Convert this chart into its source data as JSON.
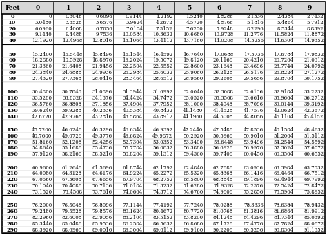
{
  "col_headers": [
    "Feet",
    "0",
    "1",
    "2",
    "3",
    "4",
    "5",
    "6",
    "7",
    "8",
    "9"
  ],
  "row_labels": [
    0,
    10,
    20,
    30,
    40,
    50,
    60,
    70,
    80,
    90,
    100,
    110,
    120,
    130,
    140,
    150,
    160,
    170,
    180,
    190,
    200,
    210,
    220,
    230,
    240,
    250,
    260,
    270,
    280,
    290
  ],
  "data": [
    [
      0,
      0.3048,
      0.6096,
      0.9144,
      1.2192,
      1.524,
      1.8288,
      2.1336,
      2.4384,
      2.7432
    ],
    [
      3.048,
      3.3528,
      3.6576,
      3.9624,
      4.2672,
      4.572,
      4.8768,
      5.1816,
      5.4864,
      5.7912
    ],
    [
      6.096,
      6.4008,
      6.7056,
      7.0104,
      7.3152,
      7.62,
      7.9248,
      8.2296,
      8.5344,
      8.8392
    ],
    [
      9.144,
      9.4488,
      9.7536,
      10.0584,
      10.3632,
      10.668,
      10.9728,
      11.2776,
      11.5824,
      11.8872
    ],
    [
      12.192,
      12.4968,
      12.8016,
      13.1064,
      13.4112,
      13.716,
      14.0208,
      14.3256,
      14.6304,
      14.9352
    ],
    [
      15.24,
      15.5448,
      15.8496,
      16.1544,
      16.4592,
      16.764,
      17.0688,
      17.3736,
      17.6784,
      17.9832
    ],
    [
      18.288,
      18.5928,
      18.8976,
      19.2024,
      19.5072,
      19.812,
      20.1168,
      20.4216,
      20.7264,
      21.0312
    ],
    [
      21.336,
      21.6408,
      21.9456,
      22.2504,
      22.5552,
      22.86,
      23.1648,
      23.4696,
      23.7744,
      24.0792
    ],
    [
      24.384,
      24.6888,
      24.9936,
      25.2984,
      25.6032,
      25.908,
      26.2128,
      26.5176,
      26.8224,
      27.1272
    ],
    [
      27.432,
      27.7368,
      28.0416,
      28.3464,
      28.6512,
      28.956,
      29.2608,
      29.5656,
      29.8704,
      30.1752
    ],
    [
      30.48,
      30.7848,
      31.0896,
      31.3944,
      31.6992,
      32.004,
      32.3088,
      32.6136,
      32.9184,
      33.2232
    ],
    [
      33.528,
      33.8328,
      34.1376,
      34.4424,
      34.7472,
      35.052,
      35.3568,
      35.6616,
      35.9664,
      36.2712
    ],
    [
      36.576,
      36.8808,
      37.1856,
      37.4904,
      37.7952,
      38.1,
      38.4048,
      38.7096,
      39.0144,
      39.3192
    ],
    [
      39.624,
      39.9288,
      40.2336,
      40.5384,
      40.8432,
      41.148,
      41.4528,
      41.7576,
      42.0624,
      42.3672
    ],
    [
      42.672,
      42.9768,
      43.2816,
      43.5864,
      43.8912,
      44.196,
      44.5008,
      44.8056,
      45.1104,
      45.4152
    ],
    [
      45.72,
      46.0248,
      46.3296,
      46.6344,
      46.9392,
      47.244,
      47.5488,
      47.8536,
      48.1584,
      48.4632
    ],
    [
      48.768,
      49.0728,
      49.3776,
      49.6824,
      49.9872,
      50.292,
      50.5968,
      50.9016,
      51.2064,
      51.5112
    ],
    [
      51.816,
      52.1208,
      52.4256,
      52.7304,
      53.0352,
      53.34,
      53.6448,
      53.9496,
      54.2544,
      54.5592
    ],
    [
      54.864,
      55.1688,
      55.4736,
      55.7784,
      56.0832,
      56.388,
      56.6928,
      56.9976,
      57.3024,
      57.6072
    ],
    [
      57.912,
      58.2168,
      58.5216,
      58.8264,
      59.1312,
      59.436,
      59.7408,
      60.0456,
      60.3504,
      60.6552
    ],
    [
      60.96,
      61.2648,
      61.5696,
      61.8744,
      62.1792,
      62.484,
      62.7888,
      63.0936,
      63.3984,
      63.7032
    ],
    [
      64.008,
      64.3128,
      64.6176,
      64.9224,
      65.2272,
      65.532,
      65.8368,
      66.1416,
      66.4464,
      66.7512
    ],
    [
      67.056,
      67.3608,
      67.6656,
      67.9704,
      68.2752,
      68.58,
      68.8848,
      69.1896,
      69.4944,
      69.7992
    ],
    [
      70.104,
      70.4088,
      70.7136,
      71.0184,
      71.3232,
      71.628,
      71.9328,
      72.2376,
      72.5424,
      72.8472
    ],
    [
      73.152,
      73.4568,
      73.7616,
      74.0664,
      74.3712,
      74.676,
      74.9808,
      75.2856,
      75.5904,
      75.8952
    ],
    [
      76.2,
      76.5048,
      76.8096,
      77.1144,
      77.4192,
      77.724,
      78.0288,
      78.3336,
      78.6384,
      78.9432
    ],
    [
      79.248,
      79.5528,
      79.8576,
      80.1624,
      80.4672,
      80.772,
      81.0768,
      81.3816,
      81.6864,
      81.9912
    ],
    [
      82.296,
      82.6008,
      82.9056,
      83.2104,
      83.5152,
      83.82,
      84.1248,
      84.4296,
      84.7344,
      85.0392
    ],
    [
      85.344,
      85.6488,
      85.9536,
      86.2584,
      86.5632,
      86.868,
      87.1728,
      87.4776,
      87.7824,
      88.0872
    ],
    [
      88.392,
      88.6968,
      89.0016,
      89.3064,
      89.6112,
      89.916,
      90.2208,
      90.5256,
      90.8304,
      91.1352
    ]
  ]
}
